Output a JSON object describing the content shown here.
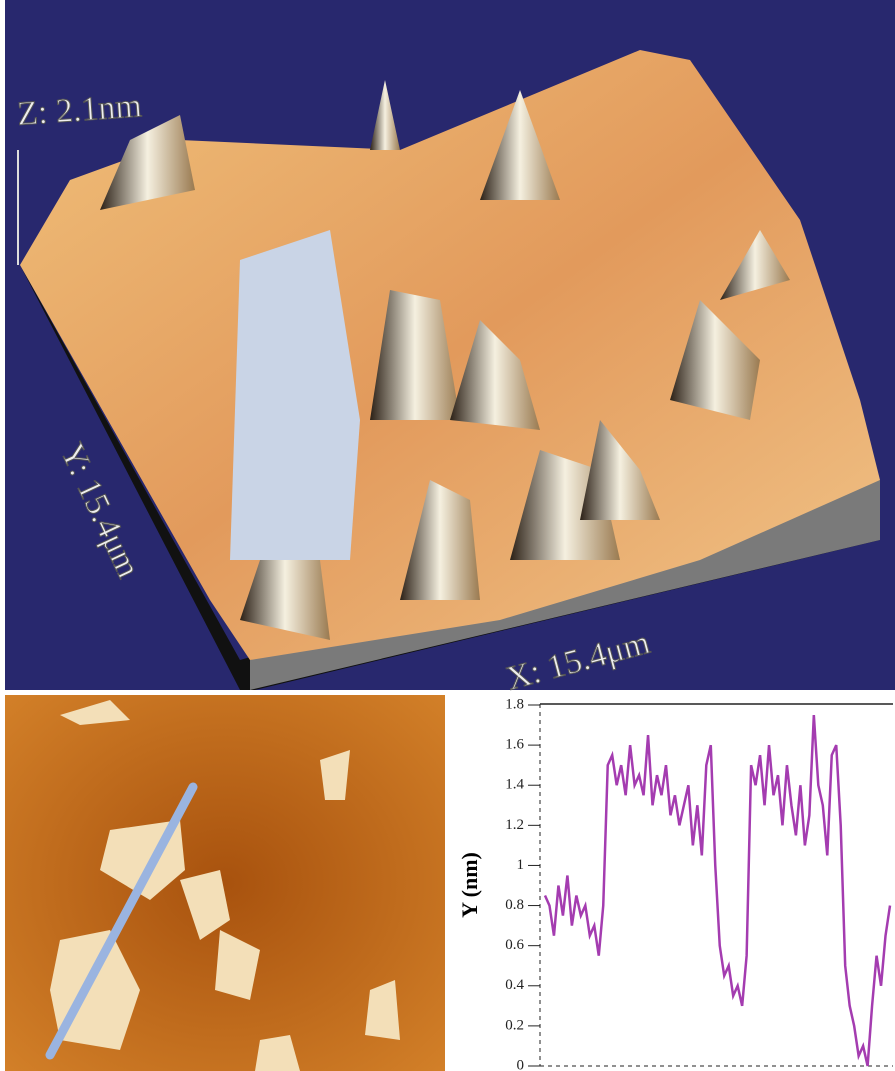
{
  "figure": {
    "z_label": "Z: 2.1nm",
    "y_label": "Y: 15.4μm",
    "x_label": "X: 15.4μm"
  },
  "chart_data": {
    "type": "line",
    "ylabel": "Y (nm)",
    "color": "#a43cb0",
    "values": [
      0.85,
      0.8,
      0.65,
      0.9,
      0.75,
      0.95,
      0.7,
      0.85,
      0.75,
      0.8,
      0.65,
      0.7,
      0.55,
      0.8,
      1.5,
      1.55,
      1.4,
      1.5,
      1.35,
      1.6,
      1.4,
      1.45,
      1.35,
      1.65,
      1.3,
      1.45,
      1.35,
      1.5,
      1.25,
      1.35,
      1.2,
      1.3,
      1.4,
      1.1,
      1.3,
      1.05,
      1.5,
      1.6,
      1.0,
      0.6,
      0.45,
      0.5,
      0.35,
      0.4,
      0.3,
      0.55,
      1.5,
      1.4,
      1.55,
      1.3,
      1.6,
      1.35,
      1.45,
      1.2,
      1.5,
      1.3,
      1.15,
      1.4,
      1.1,
      1.25,
      1.75,
      1.4,
      1.3,
      1.05,
      1.55,
      1.6,
      1.2,
      0.5,
      0.3,
      0.2,
      0.05,
      0.1,
      0.0,
      0.3,
      0.55,
      0.4,
      0.65,
      0.8
    ],
    "ylim": [
      0,
      1.8
    ],
    "yticks": [
      0,
      0.2,
      0.4,
      0.6,
      0.8,
      1,
      1.2,
      1.4,
      1.6,
      1.8
    ]
  }
}
